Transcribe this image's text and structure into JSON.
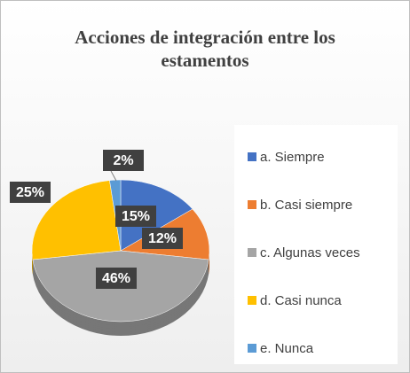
{
  "chart_data": {
    "type": "pie",
    "title": "Acciones de integración entre los estamentos",
    "categories": [
      "a. Siempre",
      "b. Casi siempre",
      "c. Algunas veces",
      "d. Casi nunca",
      "e. Nunca"
    ],
    "values": [
      15,
      12,
      46,
      25,
      2
    ],
    "value_labels": [
      "15%",
      "12%",
      "46%",
      "25%",
      "2%"
    ],
    "colors": [
      "#4472c4",
      "#ed7d31",
      "#a5a5a5",
      "#ffc000",
      "#5b9bd5"
    ],
    "legend": "right"
  }
}
